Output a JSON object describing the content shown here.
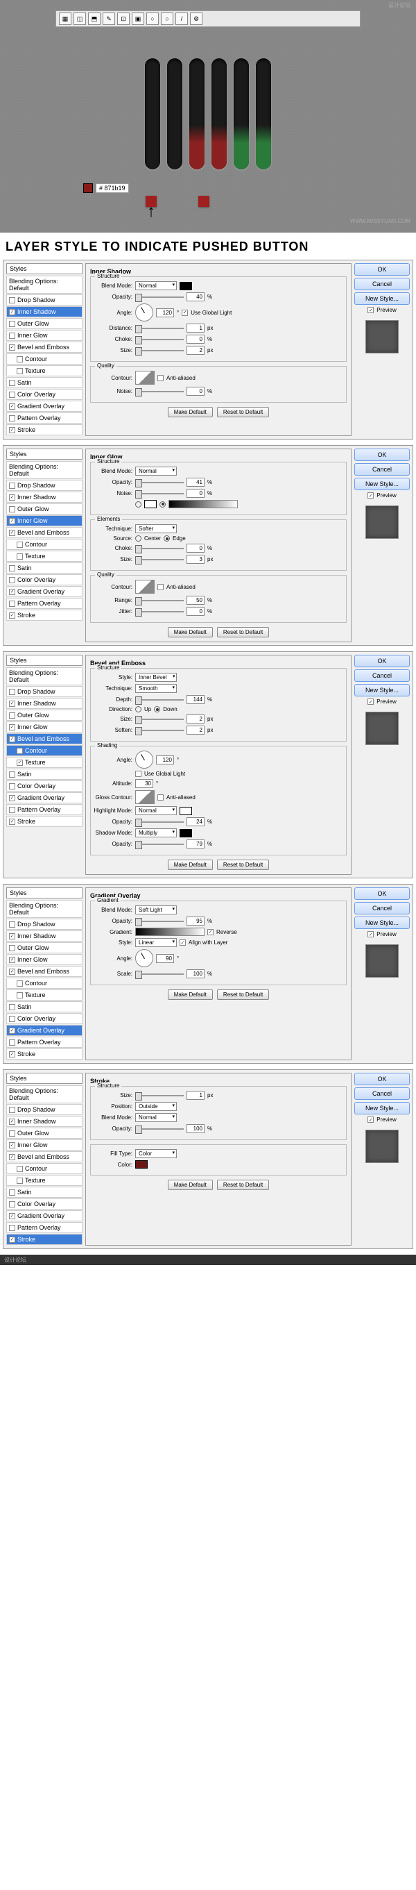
{
  "watermark": "WWW.MISSYUAN.COM",
  "watermark_cn": "设计论坛",
  "color_code": "# 871b19",
  "title": "LAYER STYLE TO INDICATE PUSHED BUTTON",
  "footer": "设计论坛",
  "slots": [
    {
      "lit": false
    },
    {
      "lit": false
    },
    {
      "lit": true,
      "c": "#8b2020"
    },
    {
      "lit": true,
      "c": "#8b2020"
    },
    {
      "lit": true,
      "c": "#2a7a3a"
    },
    {
      "lit": true,
      "c": "#2a7a3a"
    }
  ],
  "right": {
    "ok": "OK",
    "cancel": "Cancel",
    "newstyle": "New Style...",
    "preview": "Preview"
  },
  "btns": {
    "make": "Make Default",
    "reset": "Reset to Default"
  },
  "styles_header": "Styles",
  "blending": "Blending Options: Default",
  "style_items": [
    "Drop Shadow",
    "Inner Shadow",
    "Outer Glow",
    "Inner Glow",
    "Bevel and Emboss",
    "Contour",
    "Texture",
    "Satin",
    "Color Overlay",
    "Gradient Overlay",
    "Pattern Overlay",
    "Stroke"
  ],
  "panels": [
    {
      "title": "Inner Shadow",
      "selected": "Inner Shadow",
      "checked": [
        "Inner Shadow",
        "Bevel and Emboss",
        "Gradient Overlay",
        "Stroke"
      ],
      "groups": [
        {
          "t": "Structure",
          "rows": [
            {
              "l": "Blend Mode:",
              "type": "sel+sw",
              "v": "Normal",
              "sw": "#000000"
            },
            {
              "l": "Opacity:",
              "type": "slider",
              "v": "40",
              "u": "%"
            },
            {
              "l": "Angle:",
              "type": "dial",
              "v": "120",
              "u": "°",
              "ck": "Use Global Light",
              "ckon": true
            },
            {
              "l": "Distance:",
              "type": "slider",
              "v": "1",
              "u": "px"
            },
            {
              "l": "Choke:",
              "type": "slider",
              "v": "0",
              "u": "%"
            },
            {
              "l": "Size:",
              "type": "slider",
              "v": "2",
              "u": "px"
            }
          ]
        },
        {
          "t": "Quality",
          "rows": [
            {
              "l": "Contour:",
              "type": "contour",
              "ck": "Anti-aliased",
              "ckon": false
            },
            {
              "l": "Noise:",
              "type": "slider",
              "v": "0",
              "u": "%"
            }
          ]
        }
      ]
    },
    {
      "title": "Inner Glow",
      "selected": "Inner Glow",
      "checked": [
        "Inner Shadow",
        "Inner Glow",
        "Bevel and Emboss",
        "Gradient Overlay",
        "Stroke"
      ],
      "groups": [
        {
          "t": "Structure",
          "rows": [
            {
              "l": "Blend Mode:",
              "type": "sel",
              "v": "Normal"
            },
            {
              "l": "Opacity:",
              "type": "slider",
              "v": "41",
              "u": "%"
            },
            {
              "l": "Noise:",
              "type": "slider",
              "v": "0",
              "u": "%"
            },
            {
              "l": "",
              "type": "rad+grad",
              "r1": false,
              "r2": true
            }
          ]
        },
        {
          "t": "Elements",
          "rows": [
            {
              "l": "Technique:",
              "type": "sel",
              "v": "Softer"
            },
            {
              "l": "Source:",
              "type": "radios",
              "o1": "Center",
              "o2": "Edge",
              "sel": 2
            },
            {
              "l": "Choke:",
              "type": "slider",
              "v": "0",
              "u": "%"
            },
            {
              "l": "Size:",
              "type": "slider",
              "v": "3",
              "u": "px"
            }
          ]
        },
        {
          "t": "Quality",
          "rows": [
            {
              "l": "Contour:",
              "type": "contour",
              "ck": "Anti-aliased",
              "ckon": false
            },
            {
              "l": "Range:",
              "type": "slider",
              "v": "50",
              "u": "%"
            },
            {
              "l": "Jitter:",
              "type": "slider",
              "v": "0",
              "u": "%"
            }
          ]
        }
      ]
    },
    {
      "title": "Bevel and Emboss",
      "selected": "Bevel and Emboss",
      "sub_selected": "Contour",
      "checked": [
        "Inner Shadow",
        "Inner Glow",
        "Bevel and Emboss",
        "Texture",
        "Gradient Overlay",
        "Stroke"
      ],
      "groups": [
        {
          "t": "Structure",
          "rows": [
            {
              "l": "Style:",
              "type": "sel",
              "v": "Inner Bevel"
            },
            {
              "l": "Technique:",
              "type": "sel",
              "v": "Smooth"
            },
            {
              "l": "Depth:",
              "type": "slider",
              "v": "144",
              "u": "%"
            },
            {
              "l": "Direction:",
              "type": "radios",
              "o1": "Up",
              "o2": "Down",
              "sel": 2
            },
            {
              "l": "Size:",
              "type": "slider",
              "v": "2",
              "u": "px"
            },
            {
              "l": "Soften:",
              "type": "slider",
              "v": "2",
              "u": "px"
            }
          ]
        },
        {
          "t": "Shading",
          "rows": [
            {
              "l": "Angle:",
              "type": "dial",
              "v": "120",
              "u": "°"
            },
            {
              "l": "",
              "type": "ck",
              "ck": "Use Global Light",
              "ckon": false
            },
            {
              "l": "Altitude:",
              "type": "num",
              "v": "30",
              "u": "°"
            },
            {
              "l": "Gloss Contour:",
              "type": "contour",
              "ck": "Anti-aliased",
              "ckon": false
            },
            {
              "l": "Highlight Mode:",
              "type": "sel+sw",
              "v": "Normal",
              "sw": "#ffffff"
            },
            {
              "l": "Opacity:",
              "type": "slider",
              "v": "24",
              "u": "%"
            },
            {
              "l": "Shadow Mode:",
              "type": "sel+sw",
              "v": "Multiply",
              "sw": "#000000"
            },
            {
              "l": "Opacity:",
              "type": "slider",
              "v": "79",
              "u": "%"
            }
          ]
        }
      ]
    },
    {
      "title": "Gradient Overlay",
      "selected": "Gradient Overlay",
      "checked": [
        "Inner Shadow",
        "Inner Glow",
        "Bevel and Emboss",
        "Gradient Overlay",
        "Stroke"
      ],
      "groups": [
        {
          "t": "Gradient",
          "rows": [
            {
              "l": "Blend Mode:",
              "type": "sel",
              "v": "Soft Light"
            },
            {
              "l": "Opacity:",
              "type": "slider",
              "v": "95",
              "u": "%"
            },
            {
              "l": "Gradient:",
              "type": "grad",
              "ck": "Reverse",
              "ckon": true
            },
            {
              "l": "Style:",
              "type": "sel",
              "v": "Linear",
              "ck": "Align with Layer",
              "ckon": true
            },
            {
              "l": "Angle:",
              "type": "dial",
              "v": "90",
              "u": "°"
            },
            {
              "l": "Scale:",
              "type": "slider",
              "v": "100",
              "u": "%"
            }
          ]
        }
      ]
    },
    {
      "title": "Stroke",
      "selected": "Stroke",
      "checked": [
        "Inner Shadow",
        "Inner Glow",
        "Bevel and Emboss",
        "Gradient Overlay",
        "Stroke"
      ],
      "groups": [
        {
          "t": "Structure",
          "rows": [
            {
              "l": "Size:",
              "type": "slider",
              "v": "1",
              "u": "px"
            },
            {
              "l": "Position:",
              "type": "sel",
              "v": "Outside"
            },
            {
              "l": "Blend Mode:",
              "type": "sel",
              "v": "Normal"
            },
            {
              "l": "Opacity:",
              "type": "slider",
              "v": "100",
              "u": "%"
            }
          ]
        },
        {
          "t": "",
          "rows": [
            {
              "l": "Fill Type:",
              "type": "sel",
              "v": "Color"
            },
            {
              "l": "Color:",
              "type": "sw",
              "sw": "#6b1515"
            }
          ]
        }
      ]
    }
  ]
}
